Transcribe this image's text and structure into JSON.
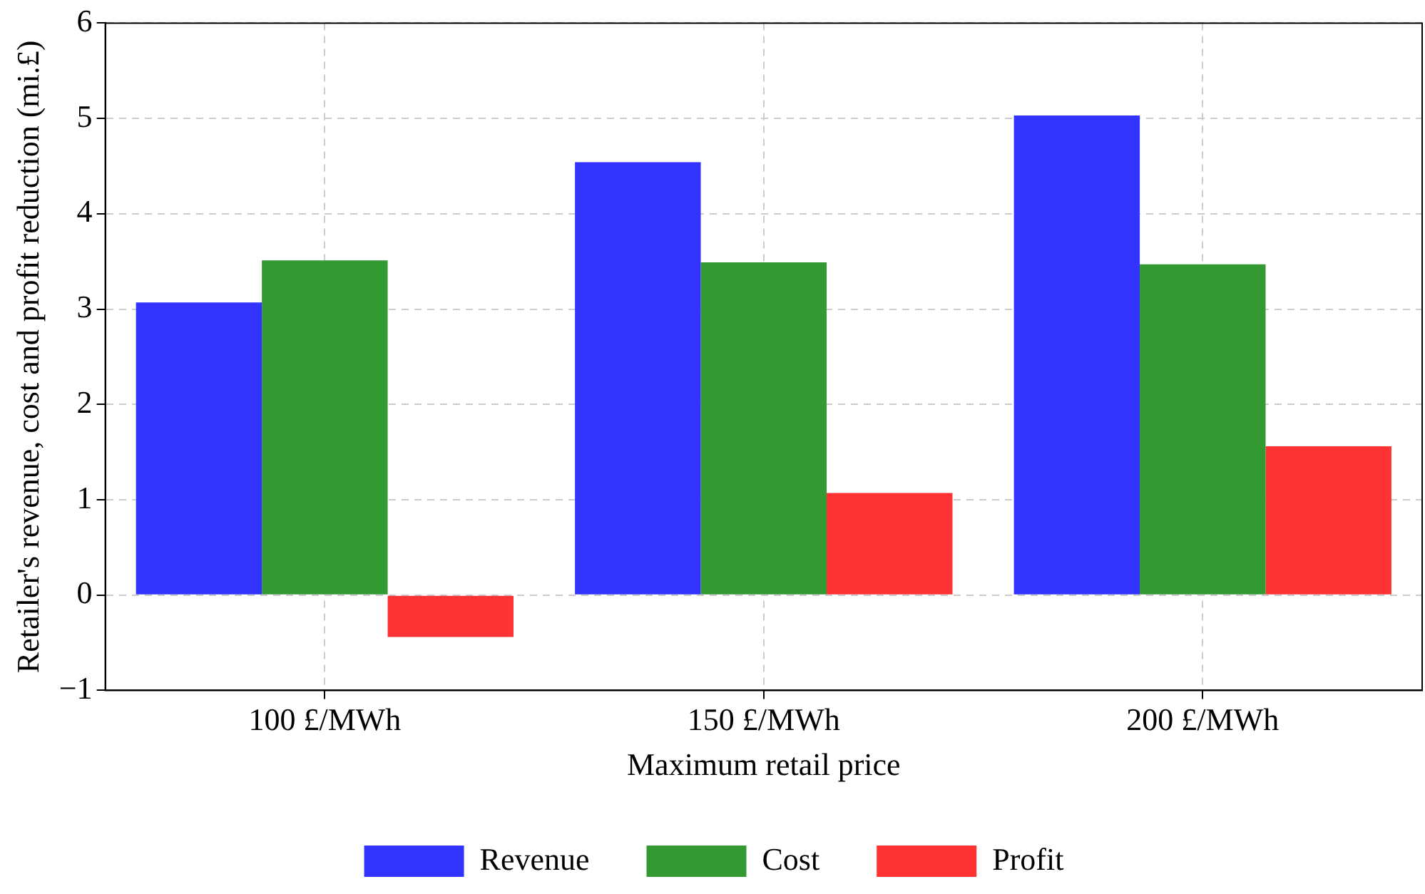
{
  "chart_data": {
    "type": "bar",
    "xlabel": "Maximum retail price",
    "ylabel": "Retailer's revenue, cost and profit reduction (mi.£)",
    "categories": [
      "100 £/MWh",
      "150 £/MWh",
      "200 £/MWh"
    ],
    "series": [
      {
        "name": "Revenue",
        "color": "#3333ff",
        "values": [
          3.07,
          4.54,
          5.03
        ]
      },
      {
        "name": "Cost",
        "color": "#339933",
        "values": [
          3.51,
          3.49,
          3.47
        ]
      },
      {
        "name": "Profit",
        "color": "#ff3333",
        "values": [
          -0.44,
          1.07,
          1.56
        ]
      }
    ],
    "ylim": [
      -1,
      6
    ],
    "yticks": [
      {
        "value": -1,
        "label": "−1"
      },
      0,
      1,
      2,
      3,
      4,
      5,
      6
    ],
    "grid": true,
    "legend": "bottom"
  }
}
